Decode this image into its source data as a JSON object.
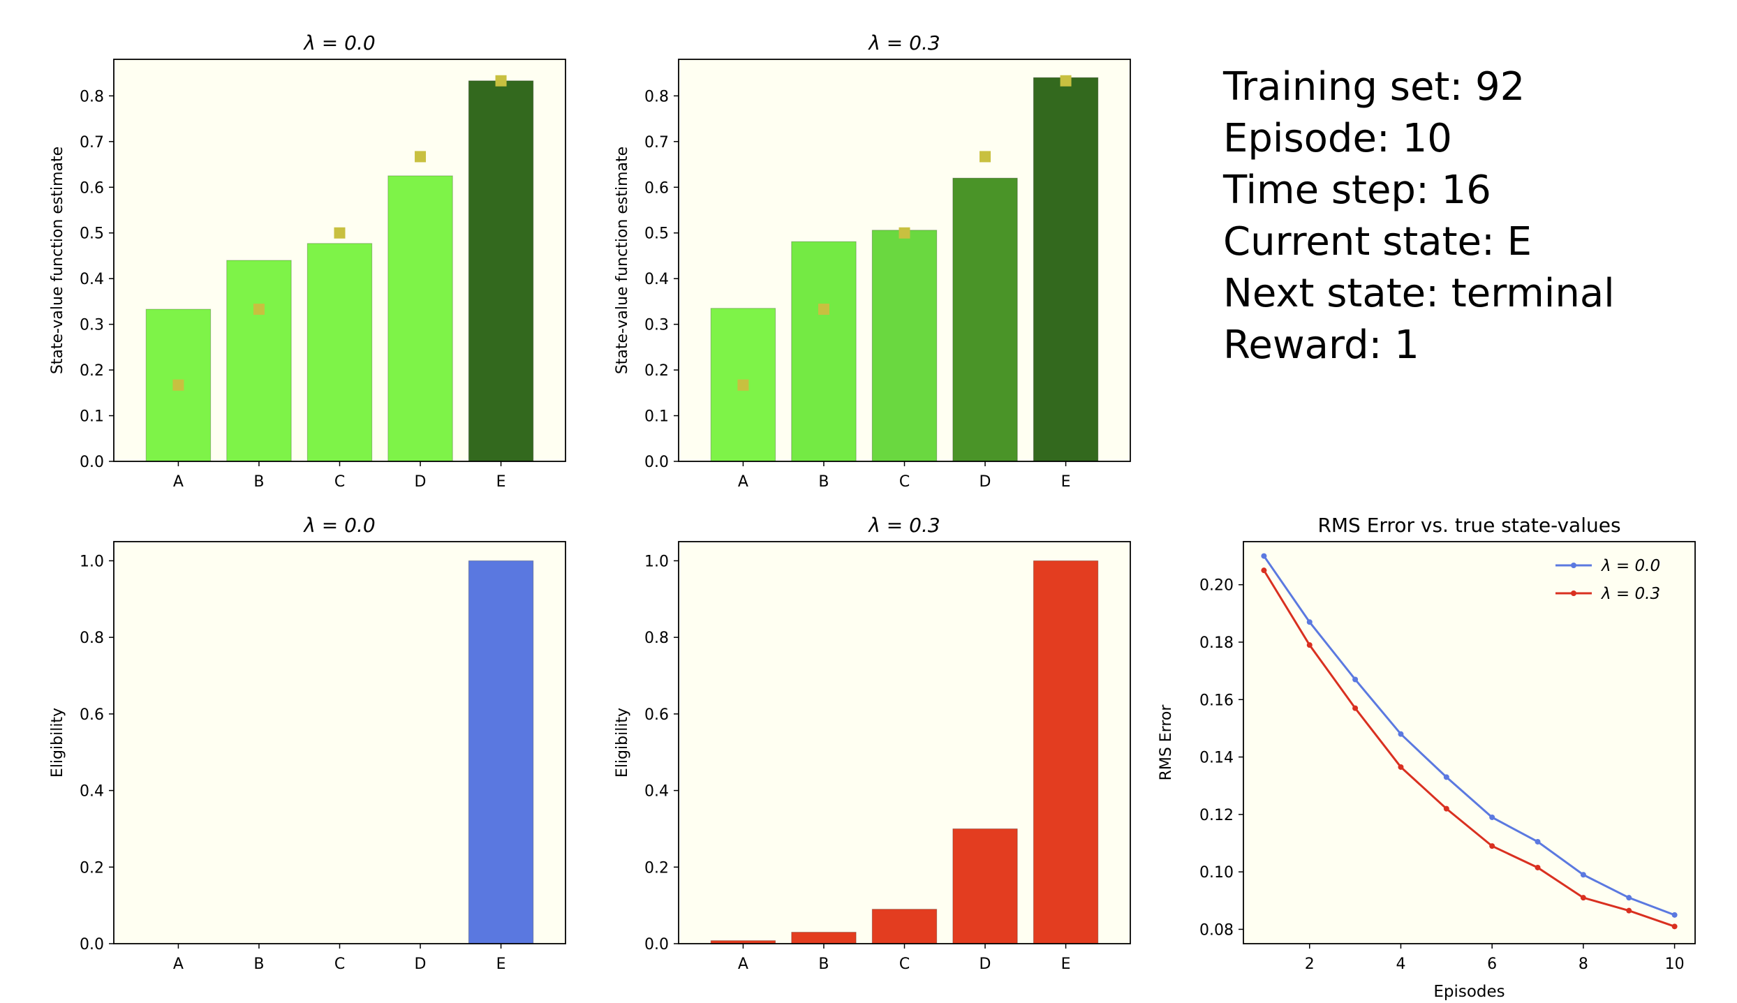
{
  "info": {
    "training_set": "Training set: 92",
    "episode": "Episode: 10",
    "time_step": "Time step: 16",
    "current_state": "Current state: E",
    "next_state": "Next state: terminal",
    "reward": "Reward: 1"
  },
  "colors": {
    "plot_bg": "#fffff2",
    "true_marker": "#c8c040",
    "lambda0_line": "#5b79e0",
    "lambda03_line": "#d93020",
    "elig_blue": "#5a78e0",
    "elig_red": "#e33d20"
  },
  "chart_data": [
    {
      "type": "bar",
      "title": "λ = 0.0",
      "ylabel": "State-value function estimate",
      "categories": [
        "A",
        "B",
        "C",
        "D",
        "E"
      ],
      "values": [
        0.333,
        0.44,
        0.477,
        0.625,
        0.833
      ],
      "bar_colors": [
        "#7ef348",
        "#7ef348",
        "#7ef348",
        "#7ef348",
        "#33691e"
      ],
      "true_values": [
        0.167,
        0.333,
        0.5,
        0.667,
        0.833
      ],
      "ylim": [
        0,
        0.88
      ],
      "yticks": [
        0.0,
        0.1,
        0.2,
        0.3,
        0.4,
        0.5,
        0.6,
        0.7,
        0.8
      ],
      "ytick_labels": [
        "0.0",
        "0.1",
        "0.2",
        "0.3",
        "0.4",
        "0.5",
        "0.6",
        "0.7",
        "0.8"
      ]
    },
    {
      "type": "bar",
      "title": "λ = 0.3",
      "ylabel": "State-value function estimate",
      "categories": [
        "A",
        "B",
        "C",
        "D",
        "E"
      ],
      "values": [
        0.335,
        0.481,
        0.506,
        0.62,
        0.84
      ],
      "bar_colors": [
        "#7ef348",
        "#74ea44",
        "#6ad840",
        "#4a9428",
        "#33691e"
      ],
      "true_values": [
        0.167,
        0.333,
        0.5,
        0.667,
        0.833
      ],
      "ylim": [
        0,
        0.88
      ],
      "yticks": [
        0.0,
        0.1,
        0.2,
        0.3,
        0.4,
        0.5,
        0.6,
        0.7,
        0.8
      ],
      "ytick_labels": [
        "0.0",
        "0.1",
        "0.2",
        "0.3",
        "0.4",
        "0.5",
        "0.6",
        "0.7",
        "0.8"
      ]
    },
    {
      "type": "bar",
      "title": "λ = 0.0",
      "ylabel": "Eligibility",
      "categories": [
        "A",
        "B",
        "C",
        "D",
        "E"
      ],
      "values": [
        0.0,
        0.0,
        0.0,
        0.0,
        1.0
      ],
      "bar_color": "#5a78e0",
      "ylim": [
        0,
        1.05
      ],
      "yticks": [
        0.0,
        0.2,
        0.4,
        0.6,
        0.8,
        1.0
      ],
      "ytick_labels": [
        "0.0",
        "0.2",
        "0.4",
        "0.6",
        "0.8",
        "1.0"
      ]
    },
    {
      "type": "bar",
      "title": "λ = 0.3",
      "ylabel": "Eligibility",
      "categories": [
        "A",
        "B",
        "C",
        "D",
        "E"
      ],
      "values": [
        0.008,
        0.03,
        0.09,
        0.3,
        1.0
      ],
      "bar_color": "#e33d20",
      "ylim": [
        0,
        1.05
      ],
      "yticks": [
        0.0,
        0.2,
        0.4,
        0.6,
        0.8,
        1.0
      ],
      "ytick_labels": [
        "0.0",
        "0.2",
        "0.4",
        "0.6",
        "0.8",
        "1.0"
      ]
    },
    {
      "type": "line",
      "title": "RMS Error vs. true state-values",
      "xlabel": "Episodes",
      "ylabel": "RMS Error",
      "xlim": [
        0.55,
        10.45
      ],
      "ylim": [
        0.075,
        0.215
      ],
      "xticks": [
        2,
        4,
        6,
        8,
        10
      ],
      "xtick_labels": [
        "2",
        "4",
        "6",
        "8",
        "10"
      ],
      "yticks": [
        0.08,
        0.1,
        0.12,
        0.14,
        0.16,
        0.18,
        0.2
      ],
      "ytick_labels": [
        "0.08",
        "0.10",
        "0.12",
        "0.14",
        "0.16",
        "0.18",
        "0.20"
      ],
      "legend": "top-right",
      "x": [
        1,
        2,
        3,
        4,
        5,
        6,
        7,
        8,
        9,
        10
      ],
      "series": [
        {
          "name": "λ = 0.0",
          "color": "#5b79e0",
          "values": [
            0.21,
            0.187,
            0.167,
            0.148,
            0.133,
            0.119,
            0.1105,
            0.099,
            0.091,
            0.085
          ]
        },
        {
          "name": "λ = 0.3",
          "color": "#d93020",
          "values": [
            0.205,
            0.179,
            0.157,
            0.1365,
            0.122,
            0.109,
            0.1015,
            0.091,
            0.0865,
            0.081
          ]
        }
      ]
    }
  ]
}
